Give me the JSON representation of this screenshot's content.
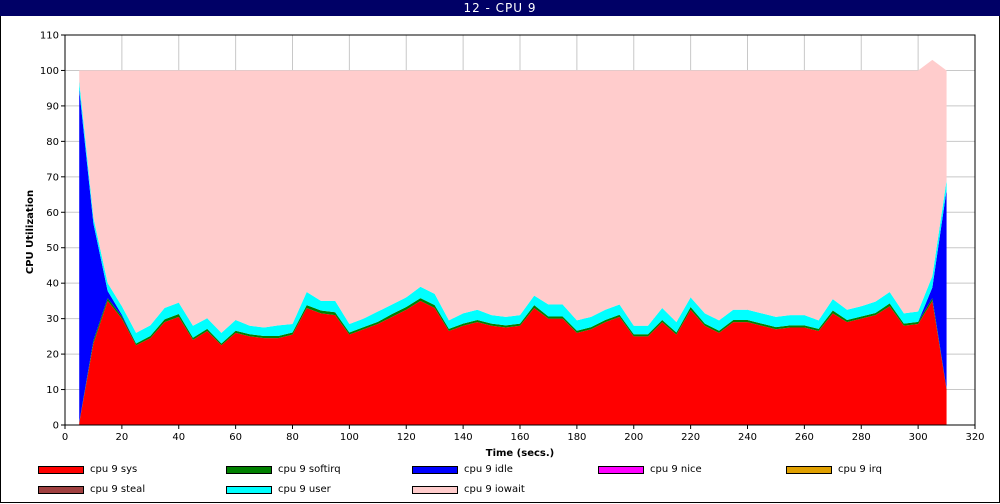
{
  "window": {
    "title": "12 - CPU 9"
  },
  "chart_data": {
    "type": "area",
    "stacked": true,
    "title": "",
    "xlabel": "Time (secs.)",
    "ylabel": "CPU Utilization",
    "xlim": [
      0,
      320
    ],
    "ylim": [
      0,
      110
    ],
    "xticks": [
      0,
      20,
      40,
      60,
      80,
      100,
      120,
      140,
      160,
      180,
      200,
      220,
      240,
      260,
      280,
      300,
      320
    ],
    "yticks": [
      0,
      10,
      20,
      30,
      40,
      50,
      60,
      70,
      80,
      90,
      100,
      110
    ],
    "grid": true,
    "legend_position": "bottom",
    "x": [
      5,
      10,
      15,
      20,
      25,
      30,
      35,
      40,
      45,
      50,
      55,
      60,
      65,
      70,
      75,
      80,
      85,
      90,
      95,
      100,
      105,
      110,
      115,
      120,
      125,
      130,
      135,
      140,
      145,
      150,
      155,
      160,
      165,
      170,
      175,
      180,
      185,
      190,
      195,
      200,
      205,
      210,
      215,
      220,
      225,
      230,
      235,
      240,
      245,
      250,
      255,
      260,
      265,
      270,
      275,
      280,
      285,
      290,
      295,
      300,
      305,
      310
    ],
    "series": [
      {
        "name": "cpu 9 sys",
        "color": "#ff0000",
        "values": [
          0.5,
          23,
          35,
          30,
          22.5,
          24.5,
          29,
          30.5,
          24,
          26.5,
          22.5,
          26,
          25,
          24.5,
          24.5,
          25.5,
          33,
          31.5,
          31,
          25.5,
          27,
          28.5,
          30.5,
          32.5,
          35,
          33,
          26.5,
          28,
          29,
          28,
          27.5,
          28,
          33,
          30,
          30,
          26,
          27,
          29,
          30.5,
          25,
          25,
          29,
          25.5,
          32.5,
          28,
          26,
          29,
          29,
          28,
          27,
          27.5,
          27.5,
          26.5,
          31.5,
          29,
          30,
          31,
          33.5,
          28,
          28.5,
          35,
          10
        ]
      },
      {
        "name": "cpu 9 softirq",
        "color": "#008000",
        "values": [
          0.2,
          0.8,
          0.8,
          0.6,
          0.5,
          0.6,
          0.8,
          0.8,
          0.6,
          0.6,
          0.5,
          0.6,
          0.6,
          0.6,
          0.6,
          0.6,
          0.8,
          0.8,
          0.8,
          0.6,
          0.6,
          0.6,
          0.8,
          0.8,
          0.8,
          0.8,
          0.6,
          0.6,
          0.6,
          0.6,
          0.6,
          0.6,
          0.8,
          0.6,
          0.6,
          0.6,
          0.6,
          0.6,
          0.6,
          0.6,
          0.6,
          0.6,
          0.6,
          0.8,
          0.6,
          0.6,
          0.6,
          0.6,
          0.6,
          0.6,
          0.6,
          0.6,
          0.6,
          0.8,
          0.6,
          0.6,
          0.6,
          0.8,
          0.6,
          0.6,
          0.8,
          0.3
        ]
      },
      {
        "name": "cpu 9 idle",
        "color": "#0000ff",
        "values": [
          94,
          33,
          2,
          0.5,
          0,
          0,
          0,
          0,
          0,
          0,
          0,
          0,
          0,
          0,
          0,
          0,
          0,
          0,
          0,
          0,
          0,
          0,
          0,
          0,
          0,
          0,
          0,
          0,
          0,
          0,
          0,
          0,
          0,
          0,
          0,
          0,
          0,
          0,
          0,
          0,
          0,
          0,
          0,
          0,
          0,
          0,
          0,
          0,
          0,
          0,
          0,
          0,
          0,
          0,
          0,
          0,
          0,
          0,
          0,
          0,
          3,
          56
        ]
      },
      {
        "name": "cpu 9 nice",
        "color": "#ff00ff",
        "values": [
          0,
          0,
          0,
          0,
          0,
          0,
          0,
          0,
          0,
          0,
          0,
          0,
          0,
          0,
          0,
          0,
          0,
          0,
          0,
          0,
          0,
          0,
          0,
          0,
          0,
          0,
          0,
          0,
          0,
          0,
          0,
          0,
          0,
          0,
          0,
          0,
          0,
          0,
          0,
          0,
          0,
          0,
          0,
          0,
          0,
          0,
          0,
          0,
          0,
          0,
          0,
          0,
          0,
          0,
          0,
          0,
          0,
          0,
          0,
          0,
          0,
          0
        ]
      },
      {
        "name": "cpu 9 irq",
        "color": "#e0a000",
        "values": [
          0,
          0,
          0,
          0,
          0,
          0,
          0,
          0,
          0,
          0,
          0,
          0,
          0,
          0,
          0,
          0,
          0,
          0,
          0,
          0,
          0,
          0,
          0,
          0,
          0,
          0,
          0,
          0,
          0,
          0,
          0,
          0,
          0,
          0,
          0,
          0,
          0,
          0,
          0,
          0,
          0,
          0,
          0,
          0,
          0,
          0,
          0,
          0,
          0,
          0,
          0,
          0,
          0,
          0,
          0,
          0,
          0,
          0,
          0,
          0,
          0,
          0
        ]
      },
      {
        "name": "cpu 9 steal",
        "color": "#a04040",
        "values": [
          0,
          0,
          0,
          0,
          0,
          0,
          0,
          0,
          0,
          0,
          0,
          0,
          0,
          0,
          0,
          0,
          0,
          0,
          0,
          0,
          0,
          0,
          0,
          0,
          0,
          0,
          0,
          0,
          0,
          0,
          0,
          0,
          0,
          0,
          0,
          0,
          0,
          0,
          0,
          0,
          0,
          0,
          0,
          0,
          0,
          0,
          0,
          0,
          0,
          0,
          0,
          0,
          0,
          0,
          0,
          0,
          0,
          0,
          0,
          0,
          0,
          0
        ]
      },
      {
        "name": "cpu 9 user",
        "color": "#00ffff",
        "values": [
          2.3,
          1.7,
          2.2,
          2.4,
          3,
          3,
          3.2,
          3.2,
          3.4,
          3,
          3,
          3,
          2.4,
          2.4,
          3,
          2.4,
          3.7,
          2.7,
          3.2,
          2.4,
          2.4,
          2.9,
          2.7,
          2.7,
          3.2,
          3.2,
          2.4,
          2.9,
          2.9,
          2.4,
          2.4,
          2.4,
          2.7,
          3.4,
          3.4,
          2.9,
          2.9,
          2.9,
          2.9,
          2.4,
          2.4,
          3.4,
          2.9,
          2.7,
          2.9,
          2.9,
          2.9,
          2.9,
          2.9,
          2.9,
          2.9,
          2.9,
          2.4,
          3.2,
          2.9,
          2.9,
          3.2,
          3.2,
          2.9,
          2.9,
          3.2,
          2.7
        ]
      },
      {
        "name": "cpu 9 iowait",
        "color": "#ffcccc",
        "values": [
          3,
          41.5,
          60,
          66.5,
          74,
          71.9,
          67,
          65.5,
          72,
          69.9,
          74,
          70.4,
          72,
          72.5,
          71.9,
          71.5,
          62.5,
          65,
          65,
          71.5,
          70,
          68,
          66,
          64,
          61,
          63,
          70.5,
          68.5,
          67.5,
          69,
          69.5,
          69,
          63.5,
          66,
          66,
          70.5,
          69.5,
          67.5,
          66,
          72,
          72,
          67,
          71,
          64,
          68.5,
          70.5,
          67.5,
          67.5,
          68.5,
          69.5,
          69,
          69,
          70.5,
          64.5,
          67.5,
          66.5,
          65.2,
          62.5,
          68.5,
          68,
          61,
          31
        ]
      }
    ]
  }
}
